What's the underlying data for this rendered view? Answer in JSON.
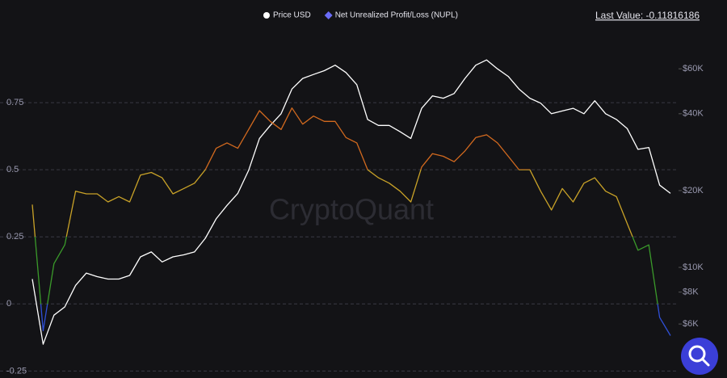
{
  "chart_data": {
    "type": "line",
    "last_value_label": "Last Value: -0.11816186",
    "watermark": "CryptoQuant",
    "categories": [
      null,
      null,
      null,
      null,
      null,
      null,
      null,
      null,
      null,
      null,
      null,
      null,
      null,
      null,
      null,
      null,
      null,
      null,
      null,
      null,
      null,
      null,
      null,
      null,
      null,
      null,
      null,
      null,
      null,
      null,
      null,
      null,
      null,
      null,
      null,
      null,
      null,
      null,
      null,
      null,
      null,
      null,
      null,
      null,
      null,
      null,
      null,
      null,
      null,
      null,
      null,
      null,
      null,
      null,
      null,
      null,
      null,
      null,
      null,
      null
    ],
    "series": [
      {
        "name": "Price USD",
        "color": "#ffffff",
        "axis": "y2",
        "marker": "circle",
        "values": [
          9000,
          5000,
          6500,
          7000,
          8500,
          9500,
          9200,
          9000,
          9000,
          9300,
          11000,
          11500,
          10500,
          11000,
          11200,
          11500,
          13000,
          15500,
          17500,
          19500,
          24000,
          32000,
          36000,
          40000,
          50000,
          55000,
          57000,
          59000,
          62000,
          58000,
          52000,
          38000,
          36000,
          36000,
          34000,
          32000,
          42000,
          47000,
          46000,
          48000,
          55000,
          62000,
          65000,
          60000,
          56000,
          50000,
          46000,
          44000,
          40000,
          41000,
          42000,
          40000,
          45000,
          40000,
          38000,
          35000,
          29000,
          29500,
          21000,
          19500
        ]
      },
      {
        "name": "Net Unrealized Profit/Loss (NUPL)",
        "color": "#6a6cf6",
        "marker": "diamond",
        "band_colors": [
          "#2f4fd6",
          "#3a9a2a",
          "#c9a227",
          "#d2691e"
        ],
        "values": [
          0.37,
          -0.1,
          0.15,
          0.22,
          0.42,
          0.41,
          0.41,
          0.38,
          0.4,
          0.38,
          0.48,
          0.49,
          0.47,
          0.41,
          0.43,
          0.45,
          0.5,
          0.58,
          0.6,
          0.58,
          0.65,
          0.72,
          0.68,
          0.65,
          0.73,
          0.67,
          0.7,
          0.68,
          0.68,
          0.62,
          0.6,
          0.5,
          0.47,
          0.45,
          0.42,
          0.38,
          0.51,
          0.56,
          0.55,
          0.53,
          0.57,
          0.62,
          0.63,
          0.6,
          0.55,
          0.5,
          0.5,
          0.42,
          0.35,
          0.43,
          0.38,
          0.45,
          0.47,
          0.42,
          0.4,
          0.3,
          0.2,
          0.22,
          -0.05,
          -0.11816186
        ]
      }
    ],
    "ylim": [
      -0.27,
      1.0
    ],
    "yticks": [
      -0.25,
      0,
      0.25,
      0.5,
      0.75
    ],
    "y2lim": [
      3740,
      81000
    ],
    "y2scale": "log",
    "y2ticks": [
      {
        "value": 6000,
        "label": "$6K"
      },
      {
        "value": 8000,
        "label": "$8K"
      },
      {
        "value": 10000,
        "label": "$10K"
      },
      {
        "value": 20000,
        "label": "$20K"
      },
      {
        "value": 40000,
        "label": "$40K"
      },
      {
        "value": 60000,
        "label": "$60K"
      }
    ],
    "grid": true
  }
}
